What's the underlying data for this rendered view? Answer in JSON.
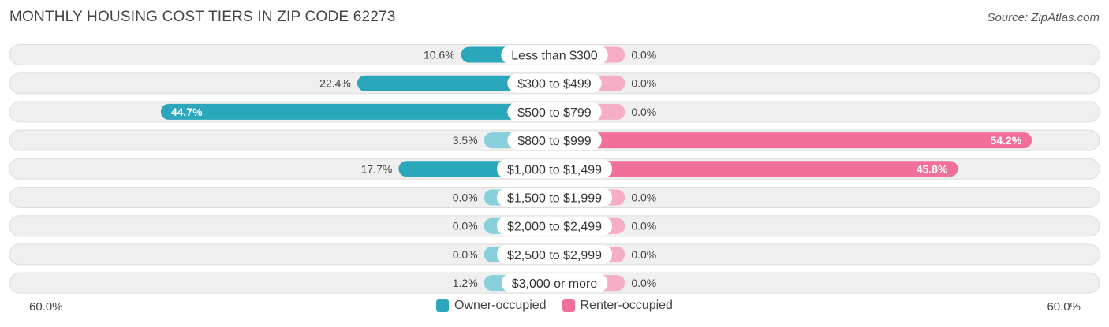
{
  "header": {
    "title": "MONTHLY HOUSING COST TIERS IN ZIP CODE 62273",
    "source": "Source: ZipAtlas.com"
  },
  "axis": {
    "left_label": "60.0%",
    "right_label": "60.0%"
  },
  "legend": {
    "owner_label": "Owner-occupied",
    "renter_label": "Renter-occupied"
  },
  "colors": {
    "owner": "#2aa7bb",
    "owner_light": "#86cfdb",
    "renter": "#f07099",
    "renter_light": "#f6aec6",
    "row_bg": "#efefef",
    "row_border": "#dddddd"
  },
  "chart_data": {
    "type": "bar",
    "orientation": "horizontal-diverging",
    "xlim": [
      -60,
      60
    ],
    "categories": [
      "Less than $300",
      "$300 to $499",
      "$500 to $799",
      "$800 to $999",
      "$1,000 to $1,499",
      "$1,500 to $1,999",
      "$2,000 to $2,499",
      "$2,500 to $2,999",
      "$3,000 or more"
    ],
    "series": [
      {
        "name": "Owner-occupied",
        "values": [
          10.6,
          22.4,
          44.7,
          3.5,
          17.7,
          0.0,
          0.0,
          0.0,
          1.2
        ],
        "labels": [
          "10.6%",
          "22.4%",
          "44.7%",
          "3.5%",
          "17.7%",
          "0.0%",
          "0.0%",
          "0.0%",
          "1.2%"
        ]
      },
      {
        "name": "Renter-occupied",
        "values": [
          0.0,
          0.0,
          0.0,
          54.2,
          45.8,
          0.0,
          0.0,
          0.0,
          0.0
        ],
        "labels": [
          "0.0%",
          "0.0%",
          "0.0%",
          "54.2%",
          "45.8%",
          "0.0%",
          "0.0%",
          "0.0%",
          "0.0%"
        ]
      }
    ]
  }
}
